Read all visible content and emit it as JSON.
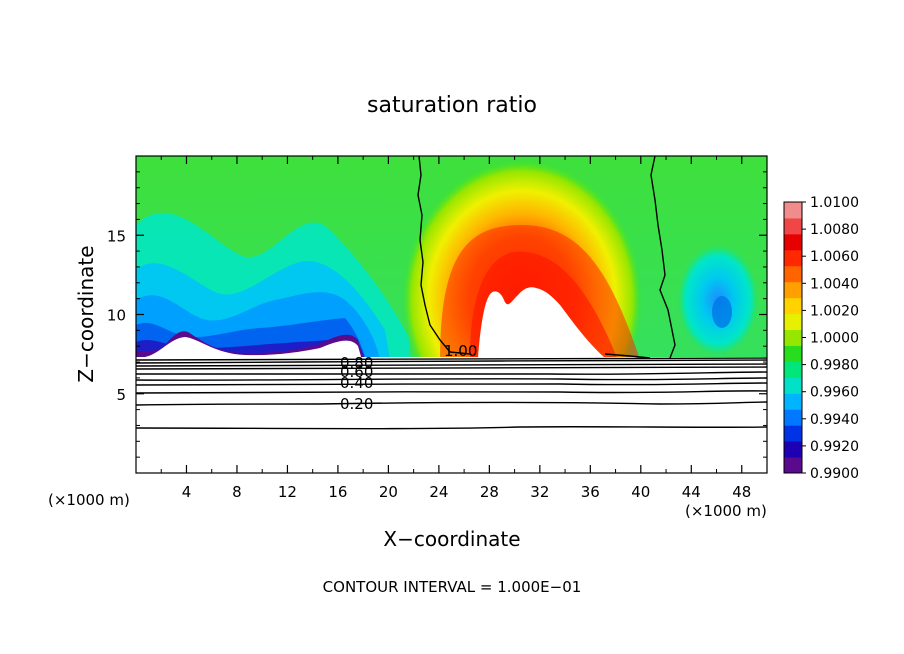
{
  "chart_data": {
    "type": "heatmap",
    "title": "saturation ratio",
    "xlabel": "X−coordinate",
    "ylabel": "Z−coordinate",
    "x_unit_left": "(×1000 m)",
    "x_unit_right": "(×1000 m)",
    "footer": "CONTOUR INTERVAL = 1.000E−01",
    "xlim": [
      0,
      50
    ],
    "ylim": [
      0,
      20
    ],
    "x_ticks": [
      4,
      8,
      12,
      16,
      20,
      24,
      28,
      32,
      36,
      40,
      44,
      48
    ],
    "x_tick_labels": [
      "4",
      "8",
      "12",
      "16",
      "20",
      "24",
      "28",
      "32",
      "36",
      "40",
      "44",
      "48"
    ],
    "y_ticks": [
      5,
      10,
      15
    ],
    "y_tick_labels": [
      "5",
      "10",
      "15"
    ],
    "colorbar": {
      "min": 0.99,
      "max": 1.01,
      "tick_values": [
        0.99,
        0.992,
        0.994,
        0.996,
        0.998,
        1.0,
        1.002,
        1.004,
        1.006,
        1.008,
        1.01
      ],
      "tick_labels": [
        "0.9900",
        "0.9920",
        "0.9940",
        "0.9960",
        "0.9980",
        "1.0000",
        "1.0020",
        "1.0040",
        "1.0060",
        "1.0080",
        "1.0100"
      ],
      "colors": [
        "#5a0a8c",
        "#1e00b4",
        "#0032e6",
        "#0078ff",
        "#00b4ff",
        "#00e1c8",
        "#00e678",
        "#28dc1e",
        "#96e600",
        "#e6f000",
        "#ffd200",
        "#ffa000",
        "#ff6400",
        "#ff2800",
        "#e60000",
        "#f04646",
        "#f08c8c"
      ]
    },
    "contour_labels": [
      {
        "text": "1.00",
        "x": 25.0,
        "y": 7.3
      },
      {
        "text": "0.80",
        "x": 17.8,
        "y": 6.8
      },
      {
        "text": "0.60",
        "x": 17.8,
        "y": 6.35
      },
      {
        "text": "0.40",
        "x": 17.8,
        "y": 5.7
      },
      {
        "text": "0.20",
        "x": 17.8,
        "y": 4.3
      }
    ],
    "surface_z": 7.4,
    "lower_contour_levels_z": [
      7.1,
      6.95,
      6.8,
      6.6,
      6.35,
      6.0,
      5.7,
      5.2,
      4.4,
      2.9
    ],
    "features": [
      {
        "kind": "supersaturated-plume",
        "center_x": 31,
        "top_z": 17.8,
        "max_value": 1.01,
        "cutoff_region": "white above 1.0100"
      },
      {
        "kind": "subsaturated-layer",
        "x_range": [
          0,
          21
        ],
        "min_value": 0.99
      },
      {
        "kind": "subsaturated-patch",
        "center_x": 46,
        "center_z": 10.2,
        "min_value": 0.995
      }
    ]
  }
}
